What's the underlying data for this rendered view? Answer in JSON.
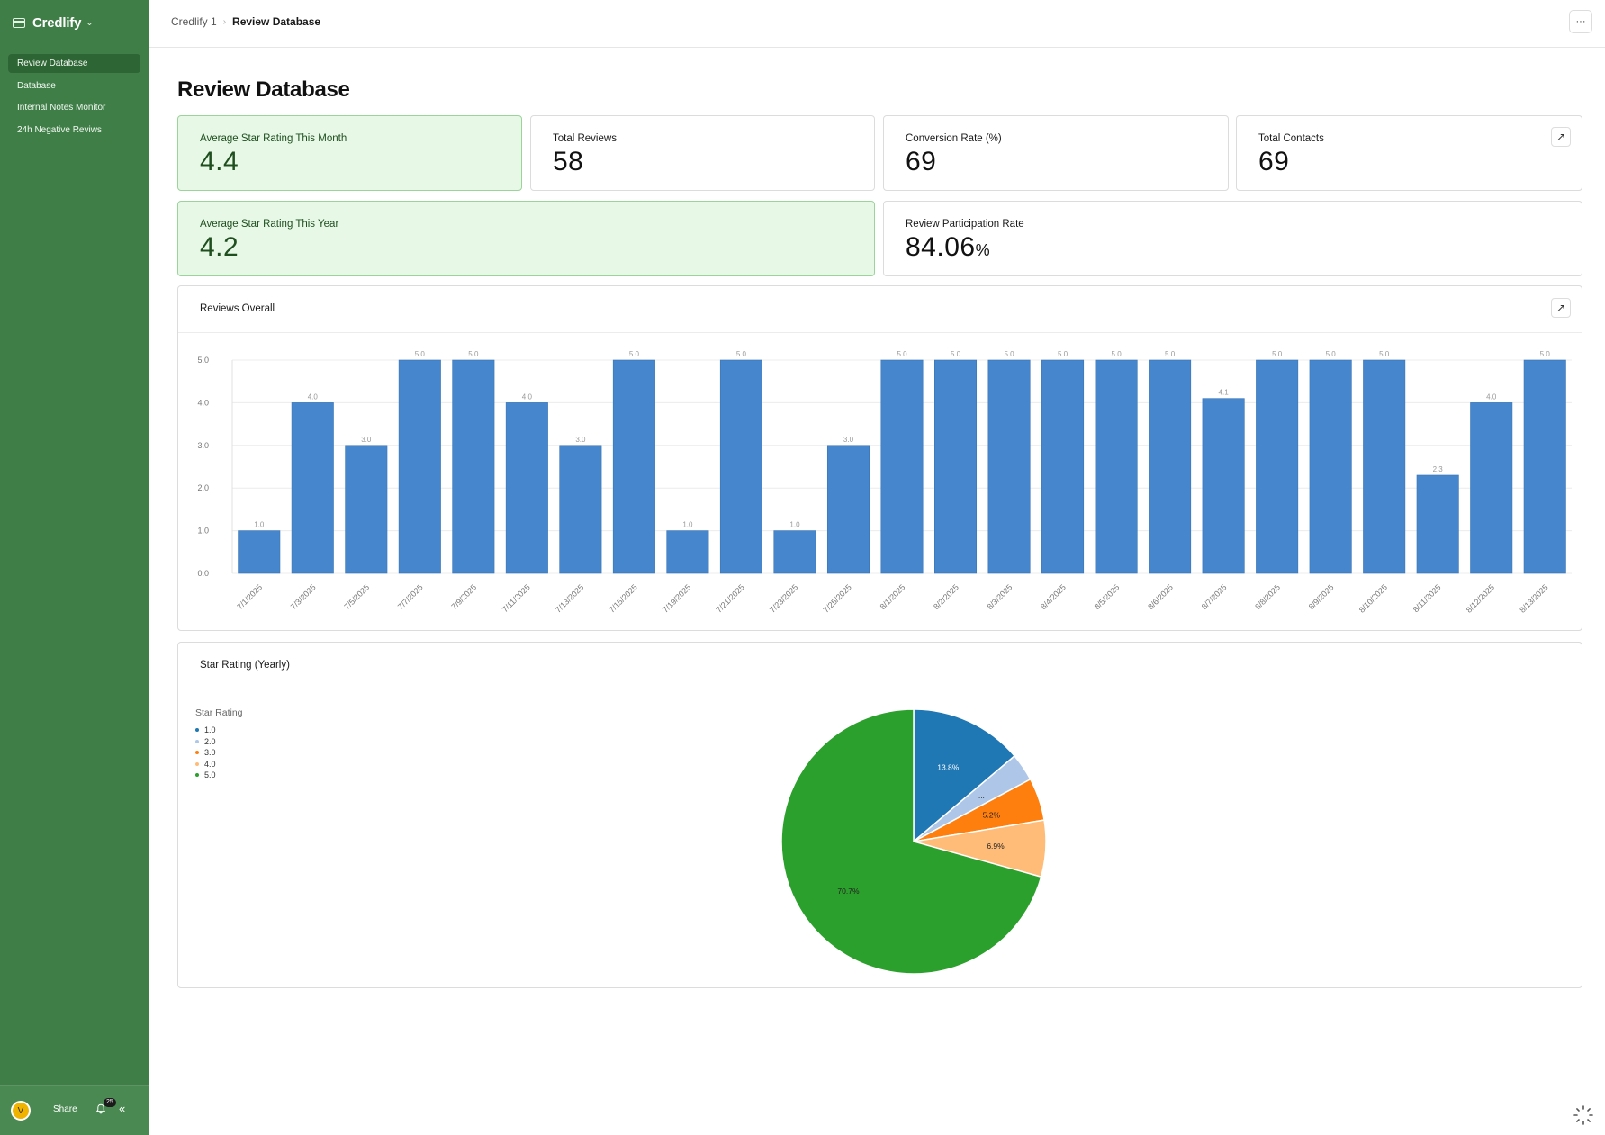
{
  "app": {
    "name": "Credlify",
    "collapse_glyph": "«"
  },
  "sidebar": {
    "items": [
      {
        "label": "Review Database",
        "active": true
      },
      {
        "label": "Database",
        "active": false
      },
      {
        "label": "Internal Notes Monitor",
        "active": false
      },
      {
        "label": "24h Negative Reviws",
        "active": false
      }
    ],
    "footer": {
      "avatar_initial": "V",
      "share_label": "Share",
      "notification_count": "25"
    }
  },
  "breadcrumb": {
    "parent": "Credlify 1",
    "current": "Review Database"
  },
  "topbar": {
    "more_label": "···"
  },
  "page": {
    "title": "Review Database"
  },
  "metrics": {
    "avg_month": {
      "label": "Average Star Rating This Month",
      "value": "4.4"
    },
    "total_reviews": {
      "label": "Total Reviews",
      "value": "58"
    },
    "conversion": {
      "label": "Conversion Rate (%)",
      "value": "69"
    },
    "total_contacts": {
      "label": "Total Contacts",
      "value": "69"
    },
    "avg_year": {
      "label": "Average Star Rating This Year",
      "value": "4.2"
    },
    "participation": {
      "label": "Review Participation Rate",
      "value": "84.06",
      "unit": "%"
    }
  },
  "colors": {
    "sidebar_bg": "#3f7f47",
    "bar": "#4586cd",
    "highlight_card": "#e7f8e6",
    "pie": [
      "#1f77b4",
      "#aec7e8",
      "#ff7f0e",
      "#ffbb78",
      "#2ca02c"
    ]
  },
  "icons": {
    "expand": "arrow-up-right-icon",
    "more": "more-horizontal-icon",
    "bell": "bell-icon",
    "collapse": "double-chevron-left-icon",
    "loader": "spinner-icon"
  },
  "chart_data": [
    {
      "type": "bar",
      "title": "Reviews Overall",
      "categories": [
        "7/1/2025",
        "7/3/2025",
        "7/5/2025",
        "7/7/2025",
        "7/9/2025",
        "7/11/2025",
        "7/13/2025",
        "7/15/2025",
        "7/19/2025",
        "7/21/2025",
        "7/23/2025",
        "7/25/2025",
        "8/1/2025",
        "8/2/2025",
        "8/3/2025",
        "8/4/2025",
        "8/5/2025",
        "8/6/2025",
        "8/7/2025",
        "8/8/2025",
        "8/9/2025",
        "8/10/2025",
        "8/11/2025",
        "8/12/2025",
        "8/13/2025"
      ],
      "values": [
        1.0,
        4.0,
        3.0,
        5.0,
        5.0,
        4.0,
        3.0,
        5.0,
        1.0,
        5.0,
        1.0,
        3.0,
        5.0,
        5.0,
        5.0,
        5.0,
        5.0,
        5.0,
        4.1,
        5.0,
        5.0,
        5.0,
        2.3,
        4.0,
        5.0
      ],
      "data_labels": [
        "1.0",
        "4.0",
        "3.0",
        "5.0",
        "5.0",
        "4.0",
        "3.0",
        "5.0",
        "1.0",
        "5.0",
        "1.0",
        "3.0",
        "5.0",
        "5.0",
        "5.0",
        "5.0",
        "5.0",
        "5.0",
        "4.1",
        "5.0",
        "5.0",
        "5.0",
        "2.3",
        "4.0",
        "5.0"
      ],
      "y_ticks": [
        "0.0",
        "1.0",
        "2.0",
        "3.0",
        "4.0",
        "5.0"
      ],
      "ylim": [
        0,
        5
      ],
      "grid": true,
      "xlabel": "",
      "ylabel": ""
    },
    {
      "type": "pie",
      "title": "Star Rating (Yearly)",
      "legend_title": "Star Rating",
      "legend_position": "top-left",
      "categories": [
        "1.0",
        "2.0",
        "3.0",
        "4.0",
        "5.0"
      ],
      "values": [
        13.8,
        3.4,
        5.2,
        6.9,
        70.7
      ],
      "slice_labels": [
        "13.8%",
        "...",
        "5.2%",
        "6.9%",
        "70.7%"
      ]
    }
  ]
}
